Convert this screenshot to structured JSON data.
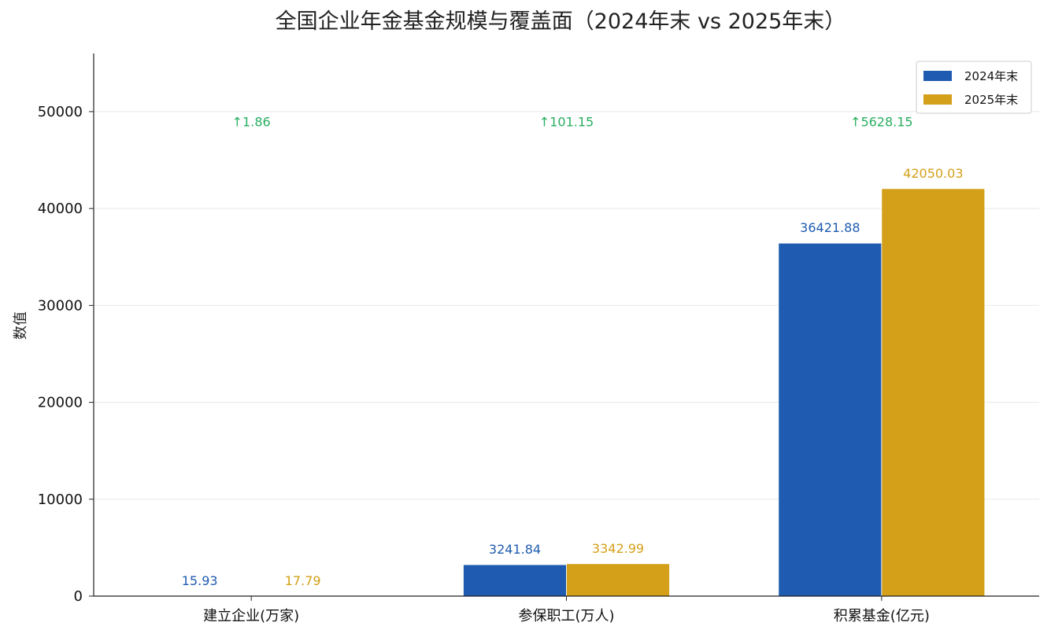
{
  "chart_data": {
    "type": "bar",
    "title": "全国企业年金基金规模与覆盖面（2024年末 vs 2025年末）",
    "ylabel": "数值",
    "xlabel": "",
    "categories": [
      "建立企业(万家)",
      "参保职工(万人)",
      "积累基金(亿元)"
    ],
    "series": [
      {
        "name": "2024年末",
        "values": [
          15.93,
          3241.84,
          36421.88
        ],
        "labels": [
          "15.93",
          "3241.84",
          "36421.88"
        ],
        "color": "#1f5bb0"
      },
      {
        "name": "2025年末",
        "values": [
          17.79,
          3342.99,
          42050.03
        ],
        "labels": [
          "17.79",
          "3342.99",
          "42050.03"
        ],
        "color": "#d4a019"
      }
    ],
    "increase_labels": [
      "↑1.86",
      "↑101.15",
      "↑5628.15"
    ],
    "increase_color": "#27ae60",
    "ylim": [
      0,
      56000
    ],
    "yticks": [
      0,
      10000,
      20000,
      30000,
      40000,
      50000
    ],
    "grid": true,
    "legend_position": "top-right"
  }
}
